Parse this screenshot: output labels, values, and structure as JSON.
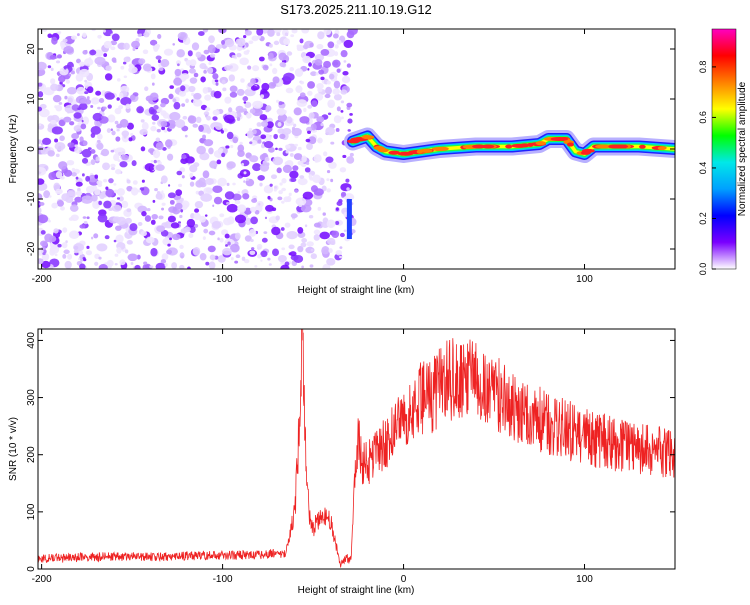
{
  "title": "S173.2025.211.10.19.G12",
  "chart_data": [
    {
      "type": "heatmap",
      "xlabel": "Height of straight line (km)",
      "ylabel": "Frequency (Hz)",
      "xlim": [
        -202,
        150
      ],
      "ylim": [
        -24,
        24
      ],
      "xticks": [
        -200,
        -100,
        0,
        100
      ],
      "yticks": [
        -20,
        -10,
        0,
        10,
        20
      ],
      "xtick_labels": [
        "-200",
        "-100",
        "0",
        "100"
      ],
      "ytick_labels": [
        "-20",
        "-10",
        "0",
        "10",
        "20"
      ],
      "grid": false,
      "noise_region_km": [
        -202,
        -28
      ],
      "signal_trace": {
        "name": "",
        "x": [
          -28,
          -20,
          -15,
          -10,
          0,
          10,
          20,
          40,
          60,
          75,
          80,
          90,
          95,
          100,
          105,
          115,
          130,
          150
        ],
        "freq": [
          1.5,
          2.5,
          0.5,
          -0.5,
          -1.0,
          -0.5,
          0.0,
          0.5,
          0.5,
          1.0,
          2.0,
          2.0,
          -0.5,
          -1.0,
          0.5,
          0.5,
          0.5,
          0.0
        ]
      },
      "colorbar": {
        "label": "Normalized spectral amplitude",
        "range": [
          0.0,
          0.95
        ],
        "ticks": [
          0.0,
          0.2,
          0.4,
          0.6,
          0.8
        ],
        "tick_labels": [
          "0.0",
          "0.2",
          "0.4",
          "0.6",
          "0.8"
        ],
        "colormap": [
          "#ffffff",
          "#7a00ff",
          "#0000ff",
          "#00a0ff",
          "#00e8e8",
          "#00ff00",
          "#ffff00",
          "#ff8000",
          "#ff0000",
          "#ff00c0"
        ]
      }
    },
    {
      "type": "line",
      "xlabel": "Height of straight line (km)",
      "ylabel": "SNR (10 * v/v)",
      "xlim": [
        -202,
        150
      ],
      "ylim": [
        0,
        420
      ],
      "xticks": [
        -200,
        -100,
        0,
        100
      ],
      "yticks": [
        0,
        100,
        200,
        300,
        400
      ],
      "xtick_labels": [
        "-200",
        "-100",
        "0",
        "100"
      ],
      "ytick_labels": [
        "0",
        "100",
        "200",
        "300",
        "400"
      ],
      "grid": false,
      "series": [
        {
          "name": "",
          "color": "#ee2222",
          "x": [
            -202,
            -180,
            -160,
            -140,
            -120,
            -100,
            -80,
            -65,
            -60,
            -58,
            -56,
            -54,
            -52,
            -50,
            -45,
            -40,
            -35,
            -31,
            -29,
            -27,
            -25,
            -23,
            -20,
            -15,
            -10,
            -5,
            0,
            5,
            10,
            15,
            20,
            25,
            30,
            35,
            40,
            45,
            50,
            55,
            60,
            65,
            70,
            80,
            90,
            100,
            110,
            120,
            130,
            140,
            150
          ],
          "y": [
            18,
            20,
            22,
            21,
            23,
            24,
            25,
            28,
            100,
            230,
            410,
            200,
            90,
            70,
            100,
            80,
            10,
            18,
            15,
            170,
            230,
            180,
            185,
            200,
            220,
            240,
            260,
            270,
            300,
            300,
            320,
            330,
            340,
            335,
            330,
            320,
            315,
            300,
            285,
            275,
            270,
            255,
            245,
            230,
            225,
            215,
            210,
            205,
            198
          ]
        }
      ]
    }
  ]
}
